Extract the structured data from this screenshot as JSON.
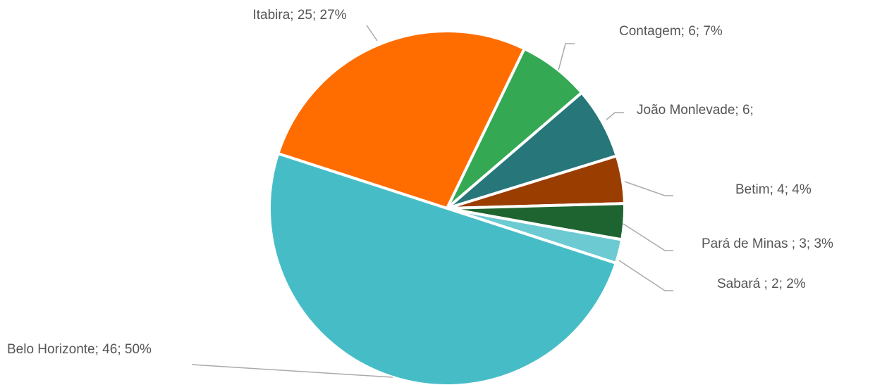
{
  "chart_data": {
    "type": "pie",
    "labels": [
      "Itabira; 25; 27%",
      "Contagem; 6; 7%",
      "João Monlevade; 6;",
      "Betim; 4; 4%",
      "Pará de Minas ; 3; 3%",
      "Sabará ; 2; 2%",
      "Belo Horizonte; 46; 50%"
    ],
    "values": [
      25,
      6,
      6,
      4,
      3,
      2,
      46
    ],
    "colors": [
      "#ff6d01",
      "#34a853",
      "#26767a",
      "#9a3d00",
      "#1e6430",
      "#6ccad2",
      "#46bdc6"
    ]
  }
}
